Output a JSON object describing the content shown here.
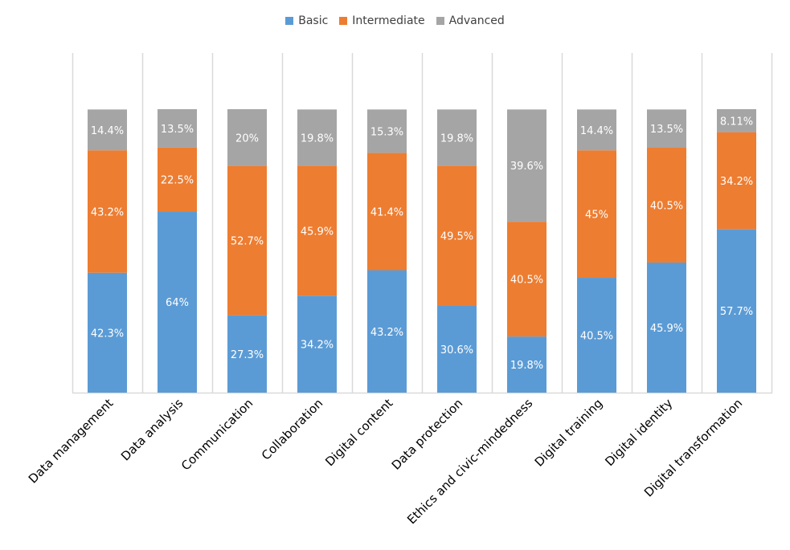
{
  "chart_data": {
    "type": "bar",
    "stacked": true,
    "normalized": true,
    "title": "",
    "xlabel": "",
    "ylabel": "",
    "ylim": [
      0,
      100
    ],
    "grid": "vertical category separators",
    "legend_position": "top-center",
    "categories": [
      "Data management",
      "Data analysis",
      "Communication",
      "Collaboration",
      "Digital content",
      "Data protection",
      "Ethics and civic-mindedness",
      "Digital training",
      "Digital identity",
      "Digital transformation"
    ],
    "series": [
      {
        "name": "Basic",
        "color": "#5B9BD5",
        "values": [
          42.3,
          64,
          27.3,
          34.2,
          43.2,
          30.6,
          19.8,
          40.5,
          45.9,
          57.7
        ],
        "labels": [
          "42.3%",
          "64%",
          "27.3%",
          "34.2%",
          "43.2%",
          "30.6%",
          "19.8%",
          "40.5%",
          "45.9%",
          "57.7%"
        ]
      },
      {
        "name": "Intermediate",
        "color": "#ED7D31",
        "values": [
          43.2,
          22.5,
          52.7,
          45.9,
          41.4,
          49.5,
          40.5,
          45,
          40.5,
          34.2
        ],
        "labels": [
          "43.2%",
          "22.5%",
          "52.7%",
          "45.9%",
          "41.4%",
          "49.5%",
          "40.5%",
          "45%",
          "40.5%",
          "34.2%"
        ]
      },
      {
        "name": "Advanced",
        "color": "#A5A5A5",
        "values": [
          14.4,
          13.5,
          20,
          19.8,
          15.3,
          19.8,
          39.6,
          14.4,
          13.5,
          8.11
        ],
        "labels": [
          "14.4%",
          "13.5%",
          "20%",
          "19.8%",
          "15.3%",
          "19.8%",
          "39.6%",
          "14.4%",
          "13.5%",
          "8.11%"
        ]
      }
    ]
  },
  "legend": {
    "items": [
      {
        "label": "Basic",
        "color": "#5B9BD5"
      },
      {
        "label": "Intermediate",
        "color": "#ED7D31"
      },
      {
        "label": "Advanced",
        "color": "#A5A5A5"
      }
    ]
  }
}
